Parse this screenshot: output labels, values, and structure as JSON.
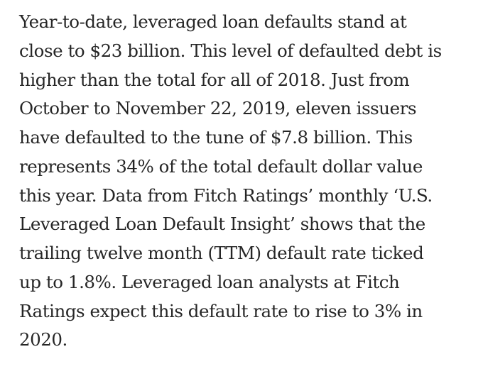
{
  "article": {
    "lines": [
      "Year-to-date, leveraged loan defaults stand at",
      "close to $23 billion. This level of defaulted debt is",
      "higher than the total for all of 2018. Just from",
      "October to November 22, 2019, eleven issuers",
      "have defaulted to the tune of $7.8 billion. This",
      "represents 34% of the total default dollar value",
      "this year. Data from Fitch Ratings’ monthly ‘U.S.",
      "Leveraged Loan Default Insight’ shows that the",
      "trailing twelve month (TTM) default rate ticked",
      "up to 1.8%. Leveraged loan analysts at Fitch",
      "Ratings expect this default rate to rise to 3% in",
      "2020."
    ]
  }
}
